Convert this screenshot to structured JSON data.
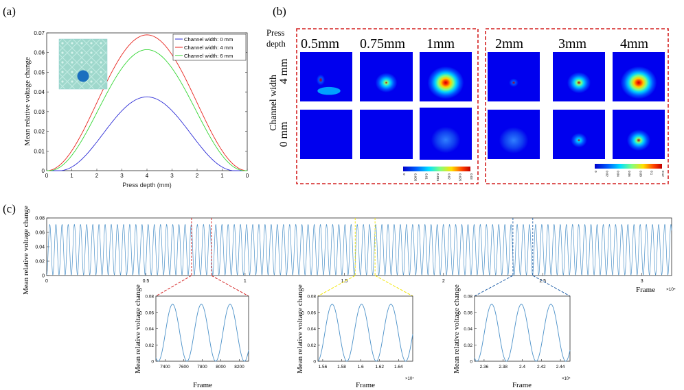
{
  "panel_labels": {
    "a": "(a)",
    "b": "(b)",
    "c": "(c)"
  },
  "colors": {
    "blue": "#2a2ad6",
    "red": "#e8231c",
    "green": "#33d633",
    "trace": "#4a90c8",
    "yellow": "#f2e600",
    "dashblue": "#1f5fa8",
    "box_red": "#d42020"
  },
  "chart_data": [
    {
      "id": "a",
      "type": "line",
      "title": "",
      "xlabel": "Press depth (mm)",
      "ylabel": "Mean relative voltage change",
      "x_tick_labels": [
        "0",
        "1",
        "2",
        "3",
        "4",
        "3",
        "2",
        "1",
        "0"
      ],
      "ylim": [
        0,
        0.07
      ],
      "y_ticks": [
        0,
        0.01,
        0.02,
        0.03,
        0.04,
        0.05,
        0.06,
        0.07
      ],
      "y_tick_labels": [
        "0",
        "0.01",
        "0.02",
        "0.03",
        "0.04",
        "0.05",
        "0.06",
        "0.07"
      ],
      "legend_position": "top-right",
      "series": [
        {
          "name": "Channel width: 0 mm",
          "color": "#2a2ad6",
          "peak": 0.0375,
          "threshold": 0.5
        },
        {
          "name": "Channel width: 4 mm",
          "color": "#e8231c",
          "peak": 0.069,
          "threshold": 0.0
        },
        {
          "name": "Channel width: 6 mm",
          "color": "#33d633",
          "peak": 0.0615,
          "threshold": 0.1
        }
      ]
    },
    {
      "id": "c",
      "type": "line",
      "xlabel": "Frame",
      "ylabel": "Mean relative voltage change",
      "xlim": [
        0,
        31500
      ],
      "x_ticks": [
        0,
        5000,
        10000,
        15000,
        20000,
        25000,
        30000
      ],
      "x_tick_labels": [
        "0",
        "0.5",
        "1",
        "1.5",
        "2",
        "2.5",
        "3"
      ],
      "x_exponent": "×10⁴",
      "ylim": [
        0,
        0.08
      ],
      "y_tick_labels": [
        "0",
        "0.02",
        "0.04",
        "0.06",
        "0.08"
      ],
      "period": 310,
      "peak": 0.07
    },
    {
      "id": "c1",
      "type": "line",
      "xlabel": "Frame",
      "ylabel": "Mean relative voltage change",
      "xlim": [
        7300,
        8300
      ],
      "x_ticks": [
        7400,
        7600,
        7800,
        8000,
        8200
      ],
      "x_tick_labels": [
        "7400",
        "7600",
        "7800",
        "8000",
        "8200"
      ],
      "ylim": [
        0,
        0.08
      ],
      "y_tick_labels": [
        "0",
        "0.02",
        "0.04",
        "0.06",
        "0.08"
      ],
      "peaks_x": [
        7480,
        7790,
        8100
      ],
      "period": 310,
      "peak": 0.07
    },
    {
      "id": "c2",
      "type": "line",
      "xlabel": "Frame",
      "ylabel": "Mean relative voltage change",
      "xlim": [
        15550,
        16550
      ],
      "x_ticks": [
        15600,
        15800,
        16000,
        16200,
        16400
      ],
      "x_tick_labels": [
        "1.56",
        "1.58",
        "1.6",
        "1.62",
        "1.64"
      ],
      "x_exponent": "×10⁴",
      "ylim": [
        0,
        0.08
      ],
      "y_tick_labels": [
        "0",
        "0.02",
        "0.04",
        "0.06",
        "0.08"
      ],
      "peaks_x": [
        15700,
        16010,
        16320
      ],
      "period": 310,
      "peak": 0.07
    },
    {
      "id": "c3",
      "type": "line",
      "xlabel": "Frame",
      "ylabel": "Mean relative voltage change",
      "xlim": [
        23500,
        24500
      ],
      "x_ticks": [
        23600,
        23800,
        24000,
        24200,
        24400
      ],
      "x_tick_labels": [
        "2.36",
        "2.38",
        "2.4",
        "2.42",
        "2.44"
      ],
      "x_exponent": "×10⁴",
      "ylim": [
        0,
        0.08
      ],
      "y_tick_labels": [
        "0",
        "0.02",
        "0.04",
        "0.06",
        "0.08"
      ],
      "peaks_x": [
        23680,
        23990,
        24300
      ],
      "period": 310,
      "peak": 0.07
    }
  ],
  "panel_b": {
    "row_header": "Press depth",
    "col_header": "Channel width",
    "row_labels": [
      "4 mm",
      "0 mm"
    ],
    "group1": {
      "depths": [
        "0.5mm",
        "0.75mm",
        "1mm"
      ],
      "intensity_4mm": [
        0.3,
        0.6,
        0.95
      ],
      "intensity_0mm": [
        0.0,
        0.02,
        0.3
      ],
      "colorbar_ticks": [
        "0",
        "0.005",
        "0.01",
        "0.015",
        "0.02",
        "0.025",
        "0.03"
      ]
    },
    "group2": {
      "depths": [
        "2mm",
        "3mm",
        "4mm"
      ],
      "intensity_4mm": [
        0.25,
        0.65,
        0.95
      ],
      "intensity_0mm": [
        0.1,
        0.45,
        0.65
      ],
      "colorbar_ticks": [
        "0",
        "0.02",
        "0.04",
        "0.06",
        "0.08",
        "0.1",
        "0.12"
      ]
    }
  }
}
